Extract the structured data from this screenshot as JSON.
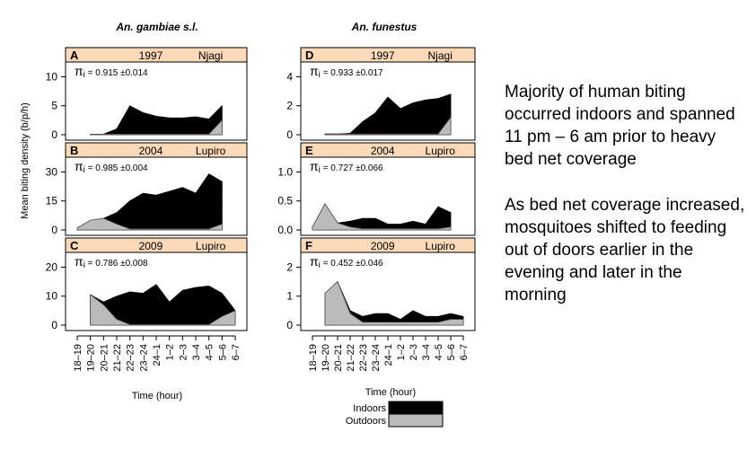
{
  "colors": {
    "indoors": "#000000",
    "outdoors": "#bbbbbb",
    "panel_header": "#fcd9b8"
  },
  "figure": {
    "col_titles": [
      "An. gambiae s.l.",
      "An. funestus"
    ],
    "ylabel": "Mean biting density (b/p/h)",
    "xlabel": "Time (hour)",
    "legend": {
      "indoors": "Indoors",
      "outdoors": "Outdoors"
    }
  },
  "side_text": {
    "p1": "Majority of human biting occurred indoors and spanned 11 pm – 6 am prior to heavy bed net coverage",
    "p2": "As bed net coverage increased, mosquitoes shifted to feeding out of doors earlier in the evening and later in the morning"
  },
  "chart_data": [
    {
      "panel": "A",
      "year": "1997",
      "site": "Njagi",
      "pi": "0.915 ±0.014",
      "type": "area",
      "x": [
        "18–19",
        "19–20",
        "20–21",
        "21–22",
        "22–23",
        "23–24",
        "24–1",
        "1–2",
        "2–3",
        "3–4",
        "4–5",
        "5–6",
        "6–7"
      ],
      "yticks": [
        0,
        5,
        10
      ],
      "ylim": [
        0,
        11
      ],
      "series": [
        {
          "name": "Indoors",
          "values": [
            null,
            0.1,
            0.1,
            1.0,
            5.0,
            3.8,
            3.2,
            2.9,
            2.9,
            3.1,
            2.7,
            5.0,
            null
          ]
        },
        {
          "name": "Outdoors",
          "values": [
            null,
            0.1,
            0.1,
            0.1,
            0.1,
            0.1,
            0.1,
            0.1,
            0.1,
            0.1,
            0.1,
            2.5,
            null
          ]
        }
      ]
    },
    {
      "panel": "B",
      "year": "2004",
      "site": "Lupiro",
      "pi": "0.985 ±0.004",
      "type": "area",
      "x": [
        "18–19",
        "19–20",
        "20–21",
        "21–22",
        "22–23",
        "23–24",
        "24–1",
        "1–2",
        "2–3",
        "3–4",
        "4–5",
        "5–6",
        "6–7"
      ],
      "yticks": [
        0,
        15,
        30
      ],
      "ylim": [
        0,
        33
      ],
      "series": [
        {
          "name": "Indoors",
          "values": [
            1,
            5,
            6,
            9,
            15,
            19,
            18,
            20,
            22,
            19,
            29,
            25,
            null
          ]
        },
        {
          "name": "Outdoors",
          "values": [
            1,
            5,
            6,
            3,
            0.5,
            0.5,
            0.5,
            0.5,
            0.5,
            0.5,
            0.5,
            3,
            null
          ]
        }
      ]
    },
    {
      "panel": "C",
      "year": "2009",
      "site": "Lupiro",
      "pi": "0.786 ±0.008",
      "type": "area",
      "x": [
        "18–19",
        "19–20",
        "20–21",
        "21–22",
        "22–23",
        "23–24",
        "24–1",
        "1–2",
        "2–3",
        "3–4",
        "4–5",
        "5–6",
        "6–7"
      ],
      "yticks": [
        0,
        10,
        20
      ],
      "ylim": [
        0,
        22
      ],
      "series": [
        {
          "name": "Indoors",
          "values": [
            null,
            10.5,
            8,
            10,
            11.5,
            11,
            14,
            8,
            12,
            13,
            13.5,
            11,
            5
          ]
        },
        {
          "name": "Outdoors",
          "values": [
            null,
            10.5,
            7,
            2,
            0.2,
            0.2,
            0.2,
            0.2,
            0.2,
            0.2,
            0.2,
            3,
            5
          ]
        }
      ]
    },
    {
      "panel": "D",
      "year": "1997",
      "site": "Njagi",
      "pi": "0.933 ±0.017",
      "type": "area",
      "x": [
        "18–19",
        "19–20",
        "20–21",
        "21–22",
        "22–23",
        "23–24",
        "24–1",
        "1–2",
        "2–3",
        "3–4",
        "4–5",
        "5–6",
        "6–7"
      ],
      "yticks": [
        0,
        2,
        4
      ],
      "ylim": [
        0,
        4.4
      ],
      "series": [
        {
          "name": "Indoors",
          "values": [
            null,
            0.05,
            0.05,
            0.1,
            0.9,
            1.5,
            2.6,
            1.8,
            2.2,
            2.4,
            2.5,
            2.8,
            null
          ]
        },
        {
          "name": "Outdoors",
          "values": [
            null,
            0.05,
            0.05,
            0.05,
            0.05,
            0.05,
            0.05,
            0.05,
            0.05,
            0.05,
            0.05,
            1.2,
            null
          ]
        }
      ]
    },
    {
      "panel": "E",
      "year": "2004",
      "site": "Lupiro",
      "pi": "0.727 ±0.066",
      "type": "area",
      "x": [
        "18–19",
        "19–20",
        "20–21",
        "21–22",
        "22–23",
        "23–24",
        "24–1",
        "1–2",
        "2–3",
        "3–4",
        "4–5",
        "5–6",
        "6–7"
      ],
      "yticks": [
        0,
        0.5,
        1.0
      ],
      "ytick_labels": [
        "0.0",
        "0.5",
        "1.0"
      ],
      "ylim": [
        0,
        1.1
      ],
      "series": [
        {
          "name": "Indoors",
          "values": [
            0.05,
            0.45,
            0.12,
            0.15,
            0.2,
            0.2,
            0.1,
            0.1,
            0.15,
            0.1,
            0.4,
            0.3,
            null
          ]
        },
        {
          "name": "Outdoors",
          "values": [
            0.05,
            0.45,
            0.12,
            0.05,
            0.02,
            0.02,
            0.02,
            0.02,
            0.02,
            0.02,
            0.02,
            0.05,
            null
          ]
        }
      ]
    },
    {
      "panel": "F",
      "year": "2009",
      "site": "Lupiro",
      "pi": "0.452 ±0.046",
      "type": "area",
      "x": [
        "18–19",
        "19–20",
        "20–21",
        "21–22",
        "22–23",
        "23–24",
        "24–1",
        "1–2",
        "2–3",
        "3–4",
        "4–5",
        "5–6",
        "6–7"
      ],
      "yticks": [
        0,
        1,
        2
      ],
      "ylim": [
        0,
        2.2
      ],
      "series": [
        {
          "name": "Indoors",
          "values": [
            null,
            1.1,
            1.5,
            0.5,
            0.3,
            0.4,
            0.4,
            0.2,
            0.5,
            0.3,
            0.3,
            0.4,
            0.3
          ]
        },
        {
          "name": "Outdoors",
          "values": [
            null,
            1.1,
            1.5,
            0.4,
            0.1,
            0.1,
            0.1,
            0.1,
            0.1,
            0.1,
            0.1,
            0.2,
            0.2
          ]
        }
      ]
    }
  ]
}
